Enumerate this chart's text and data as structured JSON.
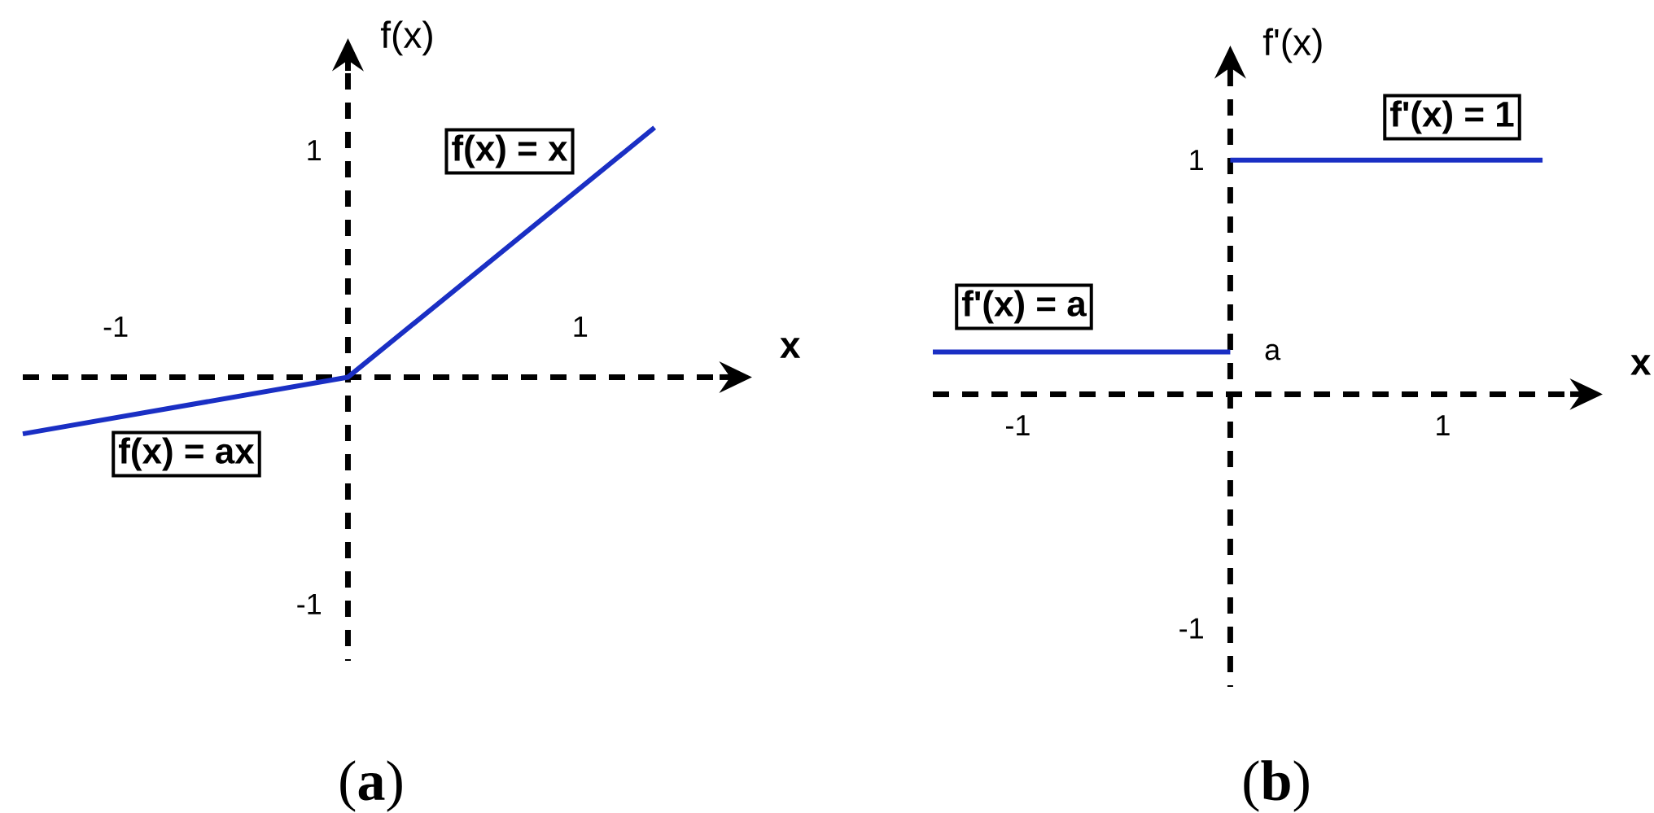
{
  "chart_data": [
    {
      "type": "line",
      "xlabel": "x",
      "ylabel": "f(x)",
      "xlim": [
        -1.4,
        1.6
      ],
      "ylim": [
        -1.25,
        1.35
      ],
      "xticks": [
        -1,
        1
      ],
      "yticks": [
        -1,
        1
      ],
      "marker": "none",
      "line_style": "solid",
      "series": [
        {
          "color": "#1a2fc4",
          "x": [
            -1.4,
            0,
            1.32
          ],
          "values": [
            -0.25,
            0,
            1.1
          ]
        }
      ],
      "ref_lines": [
        {
          "axis": "y",
          "value": 0,
          "color": "#000000",
          "line_style": "dashed"
        },
        {
          "axis": "x",
          "value": 0,
          "color": "#000000",
          "line_style": "dashed"
        }
      ],
      "annotations": [
        "f(x) = x",
        "f(x) = ax",
        "(**a**)"
      ]
    },
    {
      "type": "line",
      "xlabel": "x",
      "ylabel": "f'(x)",
      "xlim": [
        -1.4,
        1.6
      ],
      "ylim": [
        -1.25,
        1.35
      ],
      "xticks": [
        -1,
        1
      ],
      "yticks": [
        -1,
        1
      ],
      "marker": "none",
      "line_style": "solid",
      "series": [
        {
          "color": "#1a2fc4",
          "x": [
            -1.4,
            0
          ],
          "values": [
            0.18,
            0.18
          ]
        },
        {
          "color": "#1a2fc4",
          "x": [
            0,
            1.47
          ],
          "values": [
            1,
            1
          ]
        }
      ],
      "ref_lines": [
        {
          "axis": "y",
          "value": 0,
          "color": "#000000",
          "line_style": "dashed"
        },
        {
          "axis": "x",
          "value": 0,
          "color": "#000000",
          "line_style": "dashed"
        }
      ],
      "annotations": [
        "f'(x) = 1",
        "f'(x) = a",
        {
          "text": "a",
          "x": 0,
          "y": 0.18
        },
        "(**b**)"
      ]
    }
  ]
}
